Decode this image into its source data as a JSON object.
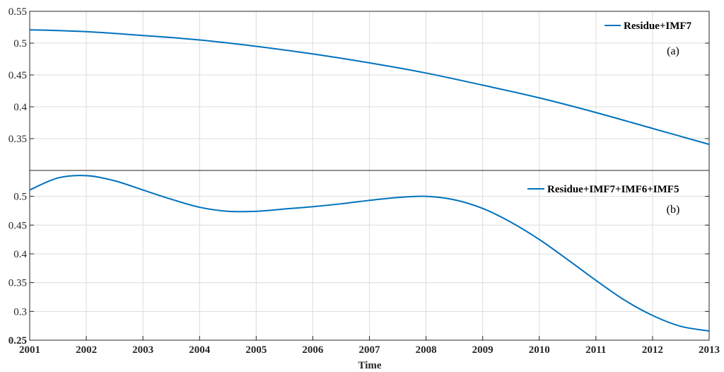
{
  "chart_data": [
    {
      "type": "line",
      "panel_label": "(a)",
      "x": [
        2001,
        2002,
        2003,
        2004,
        2005,
        2006,
        2007,
        2008,
        2009,
        2010,
        2011,
        2012,
        2013
      ],
      "series": [
        {
          "name": "Residue+IMF7",
          "values": [
            0.521,
            0.518,
            0.512,
            0.505,
            0.495,
            0.483,
            0.469,
            0.453,
            0.434,
            0.414,
            0.391,
            0.366,
            0.341
          ]
        }
      ],
      "xlim": [
        2001,
        2013
      ],
      "ylim": [
        0.3,
        0.55
      ],
      "yticks": [
        0.35,
        0.4,
        0.45,
        0.5,
        0.55
      ],
      "ytick_labels": [
        "0.35",
        "0.4",
        "0.45",
        "0.5",
        "0.55"
      ],
      "grid": true,
      "legend_position": "top-right",
      "color": "#0072BD"
    },
    {
      "type": "line",
      "panel_label": "(b)",
      "x": [
        2001,
        2001.5,
        2002,
        2002.5,
        2003,
        2003.5,
        2004,
        2004.5,
        2005,
        2005.5,
        2006,
        2006.5,
        2007,
        2007.5,
        2008,
        2008.5,
        2009,
        2009.5,
        2010,
        2010.5,
        2011,
        2011.5,
        2012,
        2012.5,
        2013
      ],
      "series": [
        {
          "name": "Residue+IMF7+IMF6+IMF5",
          "values": [
            0.511,
            0.532,
            0.536,
            0.527,
            0.511,
            0.495,
            0.481,
            0.474,
            0.474,
            0.478,
            0.482,
            0.487,
            0.493,
            0.498,
            0.5,
            0.494,
            0.479,
            0.455,
            0.425,
            0.39,
            0.354,
            0.32,
            0.293,
            0.274,
            0.266
          ]
        }
      ],
      "xlim": [
        2001,
        2013
      ],
      "ylim": [
        0.25,
        0.545
      ],
      "yticks": [
        0.25,
        0.3,
        0.35,
        0.4,
        0.45,
        0.5
      ],
      "ytick_labels": [
        "0.25",
        "0.3",
        "0.35",
        "0.4",
        "0.45",
        "0.5"
      ],
      "grid": true,
      "legend_position": "top-right",
      "color": "#0072BD"
    }
  ],
  "x_axis": {
    "label": "Time",
    "ticks": [
      "2001",
      "2002",
      "2003",
      "2004",
      "2005",
      "2006",
      "2007",
      "2008",
      "2009",
      "2010",
      "2011",
      "2012",
      "2013"
    ]
  }
}
